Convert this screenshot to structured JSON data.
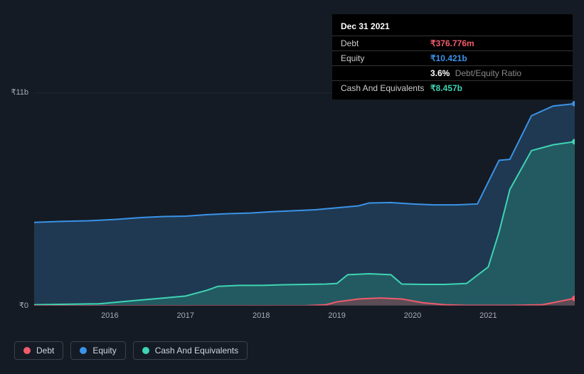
{
  "tooltip": {
    "date": "Dec 31 2021",
    "rows": [
      {
        "label": "Debt",
        "value": "₹376.776m",
        "color": "#f15b6c"
      },
      {
        "label": "Equity",
        "value": "₹10.421b",
        "color": "#3a93e8"
      },
      {
        "label": "",
        "value": "3.6%",
        "sub": "Debt/Equity Ratio",
        "color": "#ffffff"
      },
      {
        "label": "Cash And Equivalents",
        "value": "₹8.457b",
        "color": "#3fd4b4"
      }
    ]
  },
  "chart": {
    "type": "area",
    "background_color": "#151b24",
    "grid_color": "#2a3140",
    "y_axis": {
      "min": 0,
      "max": 11,
      "labels": [
        {
          "text": "₹11b",
          "frac": 0
        },
        {
          "text": "₹0",
          "frac": 1
        }
      ],
      "label_fontsize": 11,
      "label_color": "#aab"
    },
    "x_axis": {
      "labels": [
        "2016",
        "2017",
        "2018",
        "2019",
        "2020",
        "2021"
      ],
      "positions": [
        0.14,
        0.28,
        0.42,
        0.56,
        0.7,
        0.84
      ],
      "label_fontsize": 11,
      "label_color": "#aab"
    },
    "series": [
      {
        "name": "Equity",
        "color": "#3a93e8",
        "fill": "rgba(45,95,140,0.45)",
        "stroke_width": 2,
        "points": [
          [
            0.0,
            4.3
          ],
          [
            0.05,
            4.35
          ],
          [
            0.1,
            4.38
          ],
          [
            0.15,
            4.45
          ],
          [
            0.2,
            4.55
          ],
          [
            0.24,
            4.6
          ],
          [
            0.28,
            4.62
          ],
          [
            0.32,
            4.7
          ],
          [
            0.36,
            4.75
          ],
          [
            0.4,
            4.78
          ],
          [
            0.44,
            4.85
          ],
          [
            0.48,
            4.9
          ],
          [
            0.52,
            4.95
          ],
          [
            0.56,
            5.05
          ],
          [
            0.6,
            5.15
          ],
          [
            0.62,
            5.3
          ],
          [
            0.66,
            5.32
          ],
          [
            0.7,
            5.25
          ],
          [
            0.74,
            5.2
          ],
          [
            0.78,
            5.2
          ],
          [
            0.82,
            5.25
          ],
          [
            0.86,
            7.5
          ],
          [
            0.88,
            7.55
          ],
          [
            0.92,
            9.8
          ],
          [
            0.96,
            10.3
          ],
          [
            1.0,
            10.42
          ]
        ]
      },
      {
        "name": "Cash And Equivalents",
        "color": "#3fd4b4",
        "fill": "rgba(40,130,115,0.45)",
        "stroke_width": 2,
        "points": [
          [
            0.0,
            0.05
          ],
          [
            0.06,
            0.08
          ],
          [
            0.12,
            0.1
          ],
          [
            0.18,
            0.25
          ],
          [
            0.24,
            0.4
          ],
          [
            0.28,
            0.5
          ],
          [
            0.32,
            0.8
          ],
          [
            0.34,
            1.0
          ],
          [
            0.38,
            1.05
          ],
          [
            0.42,
            1.05
          ],
          [
            0.46,
            1.08
          ],
          [
            0.5,
            1.1
          ],
          [
            0.54,
            1.12
          ],
          [
            0.56,
            1.15
          ],
          [
            0.58,
            1.6
          ],
          [
            0.62,
            1.65
          ],
          [
            0.66,
            1.6
          ],
          [
            0.68,
            1.12
          ],
          [
            0.72,
            1.1
          ],
          [
            0.76,
            1.1
          ],
          [
            0.8,
            1.15
          ],
          [
            0.84,
            2.0
          ],
          [
            0.86,
            3.8
          ],
          [
            0.88,
            6.0
          ],
          [
            0.92,
            8.0
          ],
          [
            0.96,
            8.3
          ],
          [
            1.0,
            8.46
          ]
        ]
      },
      {
        "name": "Debt",
        "color": "#f15b6c",
        "fill": "rgba(160,60,70,0.45)",
        "stroke_width": 2,
        "points": [
          [
            0.0,
            0.0
          ],
          [
            0.1,
            0.0
          ],
          [
            0.2,
            0.0
          ],
          [
            0.3,
            0.0
          ],
          [
            0.4,
            0.0
          ],
          [
            0.5,
            0.0
          ],
          [
            0.54,
            0.05
          ],
          [
            0.56,
            0.2
          ],
          [
            0.6,
            0.35
          ],
          [
            0.64,
            0.4
          ],
          [
            0.68,
            0.35
          ],
          [
            0.72,
            0.15
          ],
          [
            0.76,
            0.05
          ],
          [
            0.8,
            0.02
          ],
          [
            0.88,
            0.02
          ],
          [
            0.94,
            0.05
          ],
          [
            1.0,
            0.38
          ]
        ]
      }
    ],
    "legend": [
      {
        "label": "Debt",
        "color": "#f15b6c"
      },
      {
        "label": "Equity",
        "color": "#3a93e8"
      },
      {
        "label": "Cash And Equivalents",
        "color": "#3fd4b4"
      }
    ]
  }
}
